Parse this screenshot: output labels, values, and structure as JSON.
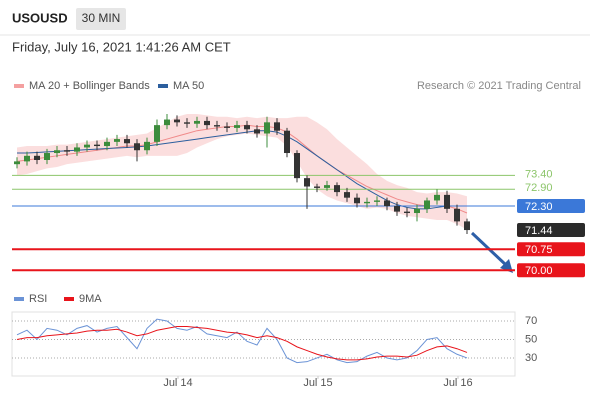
{
  "chart_data": {
    "type": "candlestick",
    "title": "USOUSD",
    "interval": "30 MIN",
    "subtitle": "Friday, July 16, 2021 1:41:26 AM CET",
    "source": "Research © 2021 Trading Central",
    "up_color": "#3c8c3c",
    "down_color": "#333333",
    "xlim": [
      -0.5,
      45.5
    ],
    "xticks": [
      {
        "value": 16.1,
        "label": "Jul 14"
      },
      {
        "value": 30.1,
        "label": "Jul 15"
      },
      {
        "value": 44.1,
        "label": "Jul 16"
      }
    ],
    "ylim": [
      69.65,
      76.1
    ],
    "candles": {
      "open": [
        73.8,
        73.9,
        74.1,
        73.95,
        74.2,
        74.3,
        74.25,
        74.4,
        74.5,
        74.45,
        74.6,
        74.7,
        74.55,
        74.3,
        74.6,
        75.2,
        75.4,
        75.3,
        75.25,
        75.35,
        75.2,
        75.15,
        75.1,
        75.2,
        75.05,
        74.9,
        75.3,
        75.0,
        74.2,
        73.3,
        73.0,
        72.95,
        73.05,
        72.8,
        72.6,
        72.4,
        72.45,
        72.5,
        72.3,
        72.1,
        72.05,
        72.2,
        72.5,
        72.7,
        72.2,
        71.75
      ],
      "high": [
        74.05,
        74.25,
        74.25,
        74.35,
        74.45,
        74.45,
        74.55,
        74.65,
        74.65,
        74.75,
        74.85,
        74.85,
        74.7,
        74.75,
        75.4,
        75.6,
        75.55,
        75.45,
        75.5,
        75.5,
        75.35,
        75.3,
        75.35,
        75.35,
        75.2,
        75.5,
        75.45,
        75.1,
        74.3,
        73.4,
        73.1,
        73.2,
        73.15,
        72.95,
        72.75,
        72.6,
        72.65,
        72.6,
        72.45,
        72.25,
        72.35,
        72.6,
        72.9,
        72.85,
        72.35,
        71.85
      ],
      "low": [
        73.65,
        73.75,
        73.8,
        73.8,
        74.05,
        74.1,
        74.1,
        74.25,
        74.3,
        74.3,
        74.45,
        74.4,
        73.9,
        74.15,
        74.45,
        75.05,
        75.15,
        75.1,
        75.1,
        75.05,
        75.0,
        74.95,
        74.95,
        74.9,
        74.75,
        74.4,
        74.85,
        74.05,
        73.15,
        72.2,
        72.8,
        72.85,
        72.65,
        72.45,
        72.25,
        72.25,
        72.3,
        72.15,
        71.95,
        71.9,
        71.75,
        72.05,
        72.35,
        72.05,
        71.6,
        71.3
      ],
      "close": [
        73.9,
        74.1,
        73.95,
        74.2,
        74.3,
        74.25,
        74.4,
        74.5,
        74.45,
        74.6,
        74.7,
        74.55,
        74.3,
        74.6,
        75.2,
        75.4,
        75.3,
        75.25,
        75.35,
        75.2,
        75.15,
        75.1,
        75.2,
        75.05,
        74.9,
        75.3,
        75.0,
        74.2,
        73.3,
        73.0,
        72.95,
        73.05,
        72.8,
        72.6,
        72.4,
        72.45,
        72.5,
        72.3,
        72.1,
        72.05,
        72.2,
        72.5,
        72.7,
        72.2,
        71.75,
        71.44
      ]
    },
    "series": [
      {
        "name": "MA 20 + Bollinger Bands",
        "color": "#f08a8a",
        "values": [
          73.9,
          73.95,
          74.0,
          74.05,
          74.1,
          74.15,
          74.2,
          74.25,
          74.3,
          74.35,
          74.4,
          74.45,
          74.45,
          74.5,
          74.6,
          74.7,
          74.8,
          74.9,
          75.0,
          75.05,
          75.1,
          75.15,
          75.15,
          75.2,
          75.15,
          75.15,
          75.1,
          74.95,
          74.7,
          74.4,
          74.1,
          73.85,
          73.6,
          73.4,
          73.2,
          73.0,
          72.85,
          72.7,
          72.55,
          72.45,
          72.35,
          72.3,
          72.3,
          72.3,
          72.2,
          72.05
        ],
        "upper": [
          74.4,
          74.45,
          74.45,
          74.45,
          74.5,
          74.5,
          74.55,
          74.6,
          74.65,
          74.7,
          74.75,
          74.8,
          74.85,
          74.9,
          75.1,
          75.3,
          75.5,
          75.6,
          75.6,
          75.55,
          75.5,
          75.5,
          75.45,
          75.5,
          75.45,
          75.5,
          75.45,
          75.45,
          75.5,
          75.5,
          75.3,
          75.05,
          74.7,
          74.4,
          74.1,
          73.8,
          73.45,
          73.2,
          73.05,
          72.95,
          72.8,
          72.75,
          72.8,
          72.8,
          72.75,
          72.65
        ],
        "lower": [
          73.4,
          73.45,
          73.55,
          73.65,
          73.7,
          73.8,
          73.85,
          73.9,
          73.95,
          74.0,
          74.05,
          74.1,
          74.05,
          74.1,
          74.1,
          74.1,
          74.1,
          74.2,
          74.4,
          74.55,
          74.7,
          74.8,
          74.85,
          74.9,
          74.85,
          74.8,
          74.75,
          74.45,
          73.9,
          73.3,
          72.9,
          72.65,
          72.5,
          72.4,
          72.3,
          72.2,
          72.25,
          72.2,
          72.05,
          71.95,
          71.9,
          71.85,
          71.8,
          71.8,
          71.65,
          71.45
        ]
      },
      {
        "name": "MA 50",
        "color": "#2c5f9e",
        "values": [
          74.2,
          74.2,
          74.22,
          74.24,
          74.26,
          74.28,
          74.3,
          74.32,
          74.34,
          74.36,
          74.38,
          74.4,
          74.42,
          74.45,
          74.5,
          74.55,
          74.6,
          74.65,
          74.7,
          74.75,
          74.8,
          74.85,
          74.9,
          74.95,
          75.0,
          75.0,
          74.95,
          74.8,
          74.6,
          74.35,
          74.1,
          73.85,
          73.6,
          73.35,
          73.1,
          72.9,
          72.7,
          72.5,
          72.35,
          72.25,
          72.2,
          72.2,
          72.25,
          72.3,
          72.3,
          72.3
        ]
      }
    ],
    "levels": [
      {
        "value": 73.4,
        "label": "73.40",
        "color": "#8cc56a",
        "boxed": false,
        "line": true
      },
      {
        "value": 72.9,
        "label": "72.90",
        "color": "#8cc56a",
        "boxed": false,
        "line": true
      },
      {
        "value": 72.3,
        "label": "72.30",
        "color": "#3b78d8",
        "boxed": true,
        "line": true
      },
      {
        "value": 71.44,
        "label": "71.44",
        "color": "#2b2b2b",
        "boxed": true,
        "line": false
      },
      {
        "value": 70.75,
        "label": "70.75",
        "color": "#e8141b",
        "boxed": true,
        "line": true
      },
      {
        "value": 70.0,
        "label": "70.00",
        "color": "#e8141b",
        "boxed": true,
        "line": true
      }
    ],
    "rsi": {
      "ylim": [
        10.5,
        79.7
      ],
      "yticks": [
        30,
        50,
        70
      ],
      "series": [
        {
          "name": "RSI",
          "color": "#6b93d6",
          "values": [
            55,
            60,
            50,
            62,
            60,
            55,
            62,
            65,
            58,
            62,
            64,
            52,
            40,
            62,
            72,
            70,
            62,
            60,
            64,
            56,
            54,
            52,
            58,
            48,
            44,
            62,
            50,
            30,
            25,
            26,
            30,
            34,
            28,
            25,
            26,
            32,
            36,
            30,
            28,
            30,
            38,
            50,
            52,
            40,
            34,
            30
          ]
        },
        {
          "name": "9MA",
          "color": "#e8141b",
          "values": [
            50,
            52,
            52,
            54,
            55,
            56,
            57,
            59,
            60,
            60,
            61,
            58,
            54,
            56,
            60,
            62,
            64,
            64,
            63,
            62,
            60,
            58,
            57,
            55,
            52,
            54,
            52,
            48,
            42,
            38,
            34,
            31,
            29,
            28,
            28,
            29,
            31,
            32,
            32,
            31,
            33,
            38,
            42,
            43,
            40,
            36
          ]
        }
      ]
    }
  }
}
